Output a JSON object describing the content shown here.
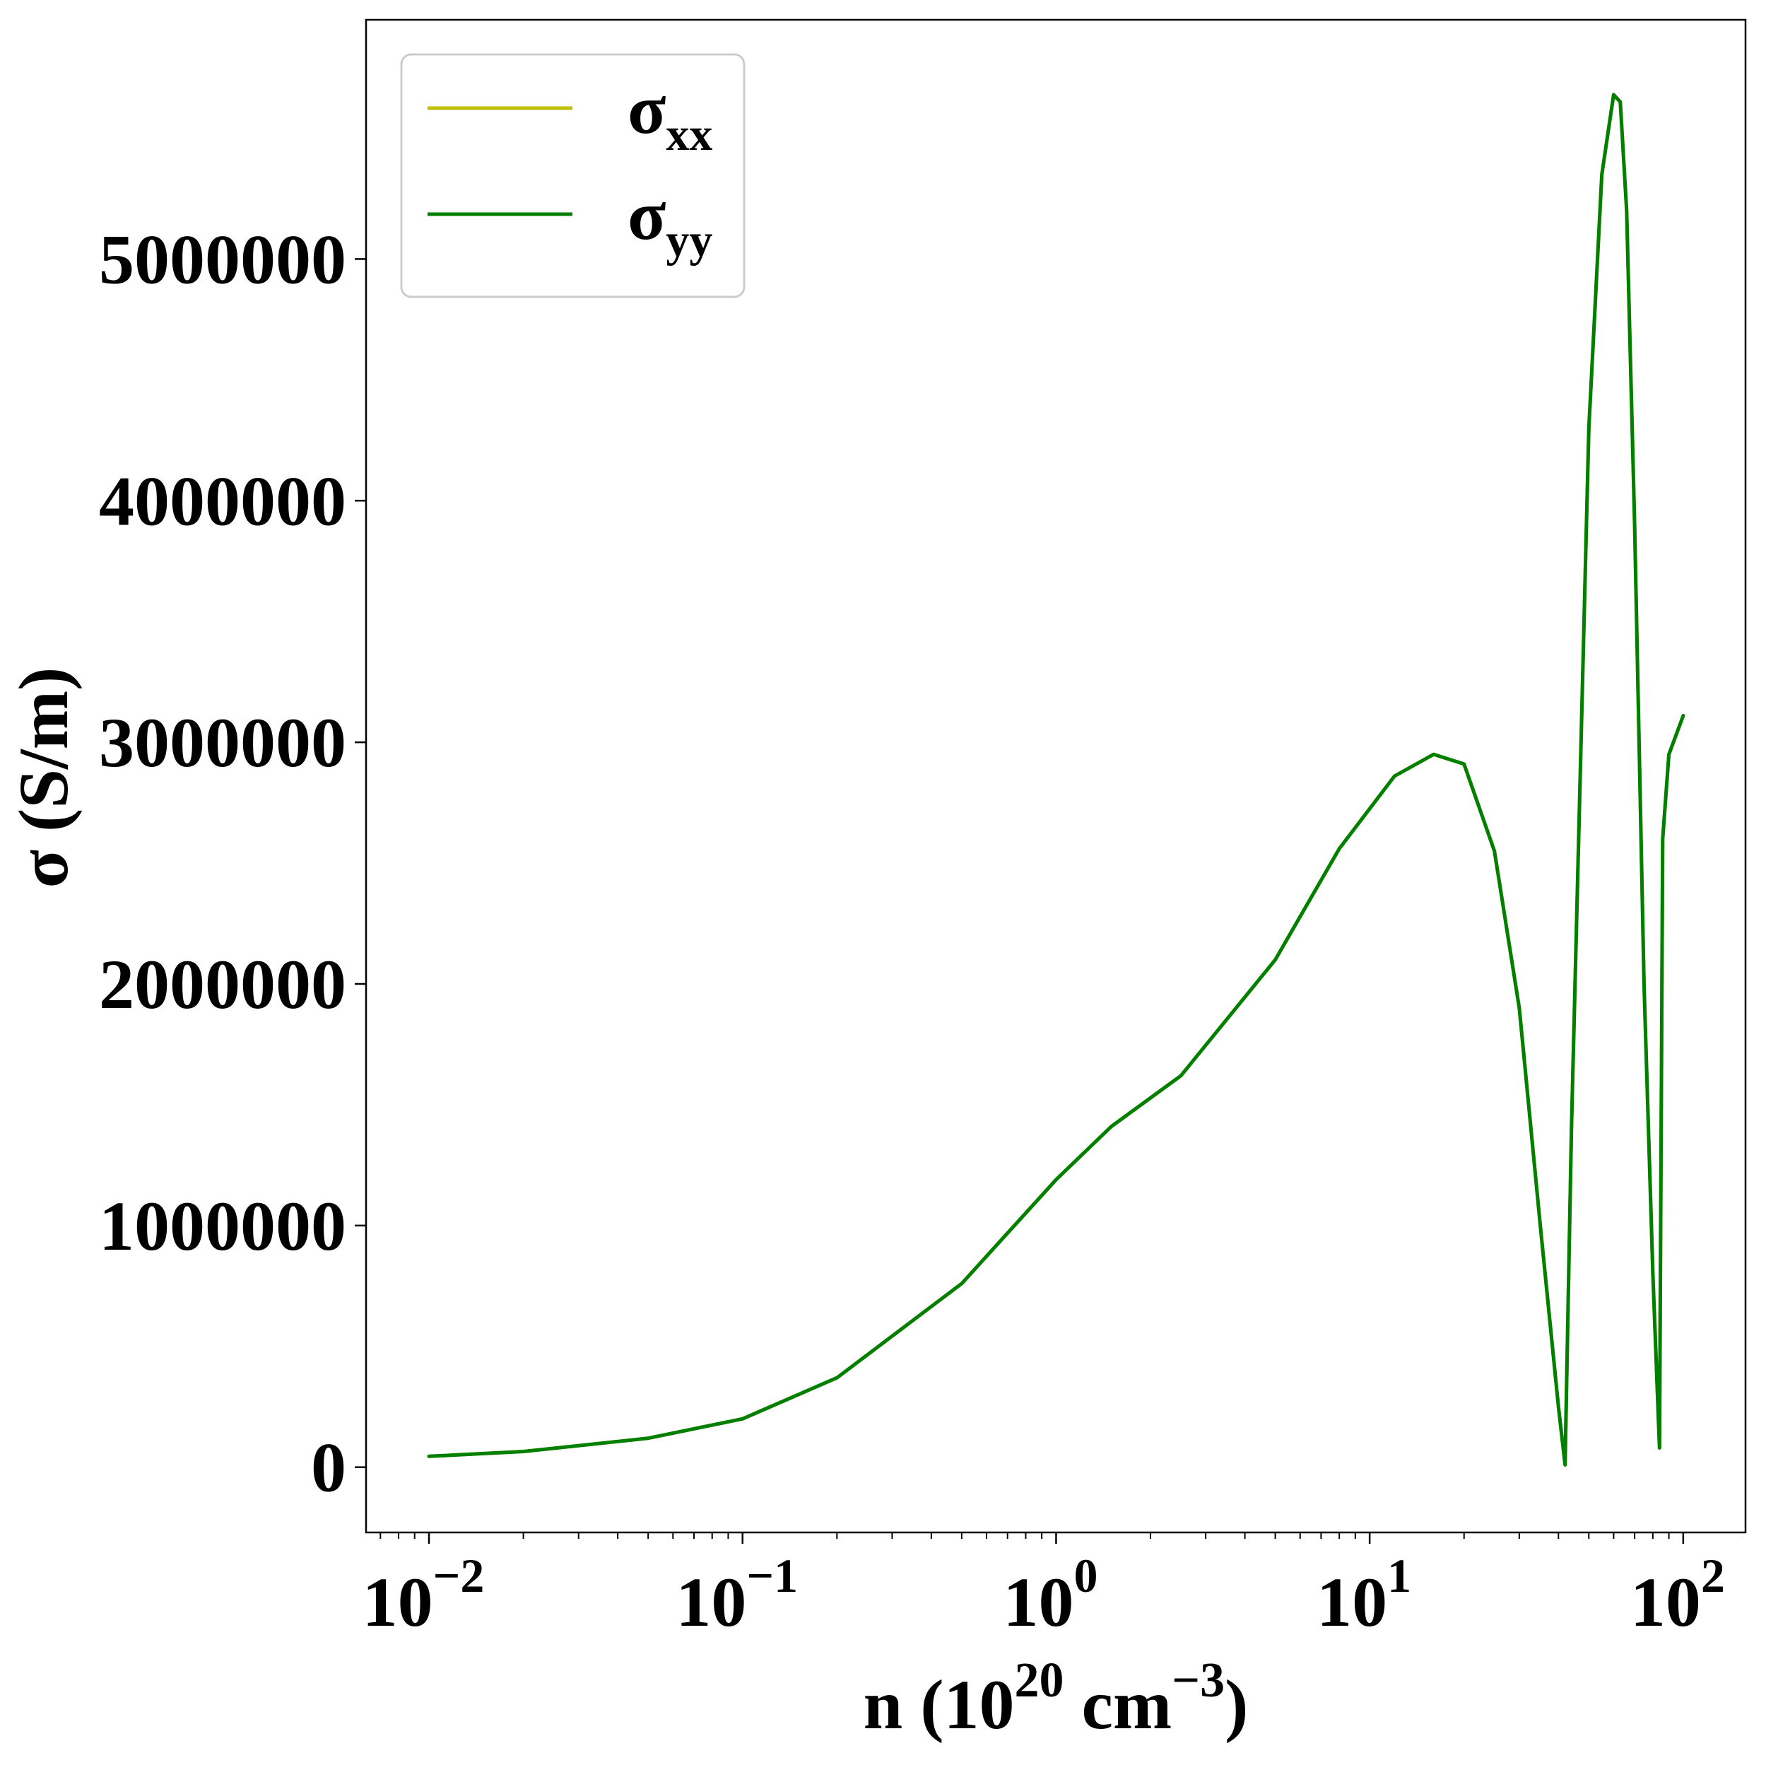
{
  "chart_data": {
    "type": "line",
    "title": "",
    "xlabel": {
      "base": "n (10",
      "sup1": "20",
      "mid": " cm",
      "sup2": "−3",
      "end": ")"
    },
    "ylabel": "σ (S/m)",
    "x_scale": "log",
    "xlim": [
      0.0063,
      158
    ],
    "ylim": [
      -270000,
      5990000
    ],
    "x_ticks": [
      {
        "base": "10",
        "exp": "−2",
        "value": 0.01
      },
      {
        "base": "10",
        "exp": "−1",
        "value": 0.1
      },
      {
        "base": "10",
        "exp": "0",
        "value": 1
      },
      {
        "base": "10",
        "exp": "1",
        "value": 10
      },
      {
        "base": "10",
        "exp": "2",
        "value": 100
      }
    ],
    "y_ticks": [
      {
        "label": "0",
        "value": 0
      },
      {
        "label": "1000000",
        "value": 1000000
      },
      {
        "label": "2000000",
        "value": 2000000
      },
      {
        "label": "3000000",
        "value": 3000000
      },
      {
        "label": "4000000",
        "value": 4000000
      },
      {
        "label": "5000000",
        "value": 5000000
      }
    ],
    "grid": false,
    "legend_position": "top-left",
    "series": [
      {
        "name": "σxx",
        "name_base": "σ",
        "name_sub": "xx",
        "color": "#bfbf00",
        "x": [
          0.01,
          0.02,
          0.05,
          0.1,
          0.2,
          0.5,
          1,
          1.5,
          2.5,
          5,
          8,
          12,
          16,
          20,
          25,
          30,
          35,
          40,
          42,
          44,
          50,
          55,
          60,
          63,
          66,
          70,
          75,
          80,
          84,
          86,
          90,
          100
        ],
        "y": [
          45000,
          65000,
          120000,
          200000,
          370000,
          760000,
          1190000,
          1410000,
          1620000,
          2100000,
          2560000,
          2860000,
          2950000,
          2910000,
          2550000,
          1900000,
          1000000,
          250000,
          10000,
          1400000,
          4300000,
          5350000,
          5680000,
          5650000,
          5200000,
          3900000,
          2000000,
          800000,
          80000,
          2600000,
          2950000,
          3110000
        ]
      },
      {
        "name": "σyy",
        "name_base": "σ",
        "name_sub": "yy",
        "color": "#007f00",
        "x": [
          0.01,
          0.02,
          0.05,
          0.1,
          0.2,
          0.5,
          1,
          1.5,
          2.5,
          5,
          8,
          12,
          16,
          20,
          25,
          30,
          35,
          40,
          42,
          44,
          50,
          55,
          60,
          63,
          66,
          70,
          75,
          80,
          84,
          86,
          90,
          100
        ],
        "y": [
          45000,
          65000,
          120000,
          200000,
          370000,
          760000,
          1190000,
          1410000,
          1620000,
          2100000,
          2560000,
          2860000,
          2950000,
          2910000,
          2550000,
          1900000,
          1000000,
          250000,
          10000,
          1400000,
          4300000,
          5350000,
          5680000,
          5650000,
          5200000,
          3900000,
          2000000,
          800000,
          80000,
          2600000,
          2950000,
          3110000
        ]
      }
    ]
  }
}
